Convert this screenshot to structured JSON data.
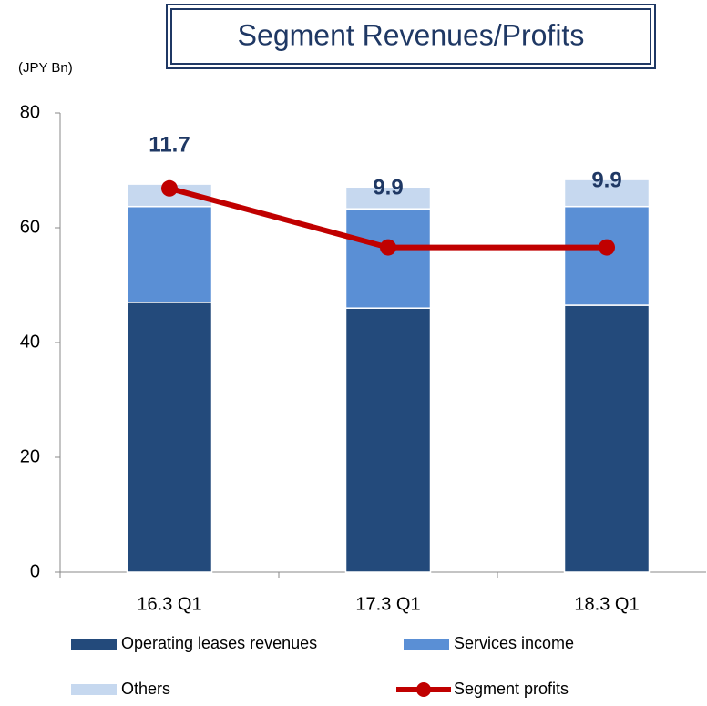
{
  "chart_data": {
    "type": "bar",
    "stacked": true,
    "title": "Segment Revenues/Profits",
    "unit_label": "(JPY Bn)",
    "categories": [
      "16.3 Q1",
      "17.3 Q1",
      "18.3 Q1"
    ],
    "series": [
      {
        "name": "Operating leases revenues",
        "color": "#234a7b",
        "values": [
          47.0,
          46.0,
          46.5
        ]
      },
      {
        "name": "Services income",
        "color": "#5a8fd5",
        "values": [
          16.7,
          17.3,
          17.2
        ]
      },
      {
        "name": "Others",
        "color": "#c6d8ef",
        "values": [
          3.9,
          3.8,
          4.7
        ]
      },
      {
        "name": "Segment profits",
        "color": "#c00000",
        "type": "line",
        "axis": "y2",
        "values": [
          11.7,
          9.9,
          9.9
        ]
      }
    ],
    "ylim": [
      0,
      80
    ],
    "yticks": [
      0,
      20,
      40,
      60,
      80
    ],
    "y2lim": [
      0,
      14
    ]
  }
}
